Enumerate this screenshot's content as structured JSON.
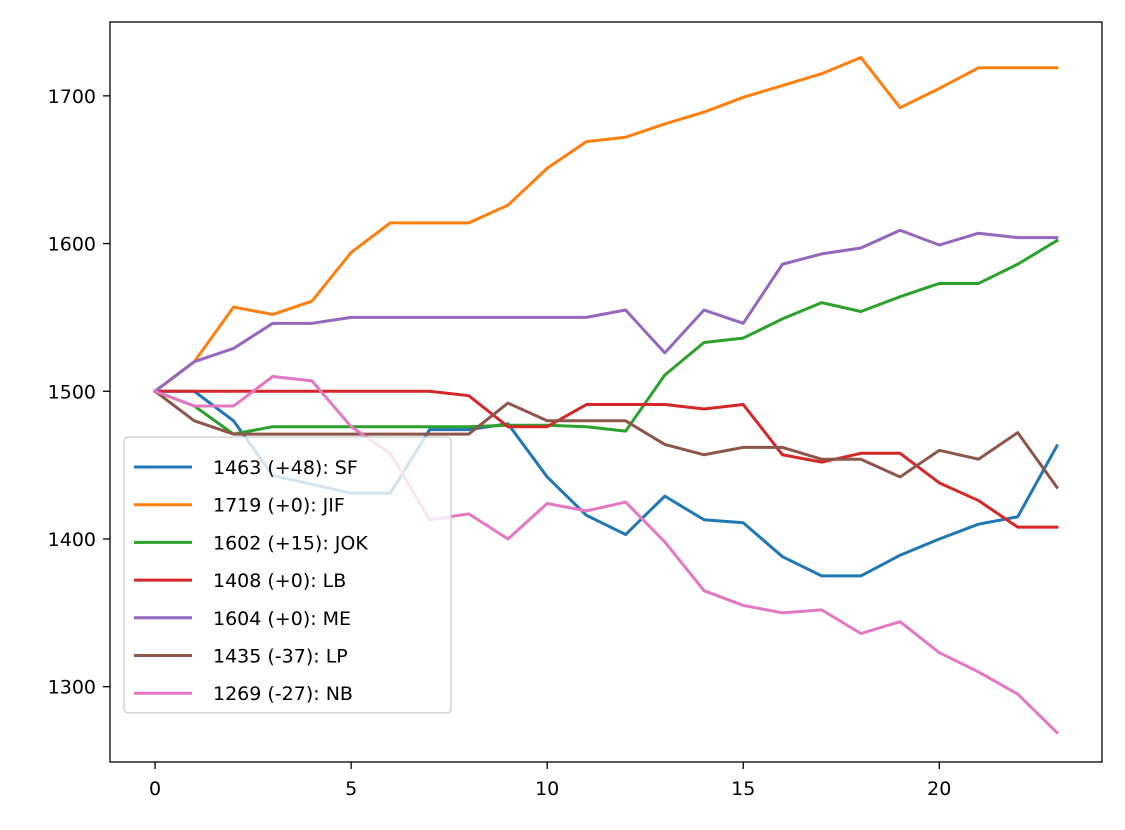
{
  "chart_data": {
    "type": "line",
    "title": "",
    "xlabel": "",
    "ylabel": "",
    "xlim": [
      -1.15,
      24.15
    ],
    "ylim": [
      1249,
      1750
    ],
    "xticks": [
      0,
      5,
      10,
      15,
      20
    ],
    "yticks": [
      1300,
      1400,
      1500,
      1600,
      1700
    ],
    "legend_position": "lower-left",
    "grid": false,
    "x": [
      0,
      1,
      2,
      3,
      4,
      5,
      6,
      7,
      8,
      9,
      10,
      11,
      12,
      13,
      14,
      15,
      16,
      17,
      18,
      19,
      20,
      21,
      22,
      23
    ],
    "series": [
      {
        "name": "1463 (+48): SF",
        "color": "#1f77b4",
        "values": [
          1500,
          1500,
          1480,
          1443,
          1437,
          1431,
          1431,
          1474,
          1474,
          1478,
          1442,
          1416,
          1403,
          1429,
          1413,
          1411,
          1388,
          1375,
          1375,
          1389,
          1400,
          1410,
          1415,
          1463
        ]
      },
      {
        "name": "1719 (+0): JIF",
        "color": "#ff7f0e",
        "values": [
          1500,
          1520,
          1557,
          1552,
          1561,
          1594,
          1614,
          1614,
          1614,
          1626,
          1651,
          1669,
          1672,
          1681,
          1689,
          1699,
          1707,
          1715,
          1726,
          1692,
          1705,
          1719,
          1719,
          1719
        ]
      },
      {
        "name": "1602 (+15): JOK",
        "color": "#2ca02c",
        "values": [
          1500,
          1490,
          1471,
          1476,
          1476,
          1476,
          1476,
          1476,
          1476,
          1477,
          1477,
          1476,
          1473,
          1511,
          1533,
          1536,
          1549,
          1560,
          1554,
          1564,
          1573,
          1573,
          1586,
          1602
        ]
      },
      {
        "name": "1408 (+0): LB",
        "color": "#d62728",
        "values": [
          1500,
          1500,
          1500,
          1500,
          1500,
          1500,
          1500,
          1500,
          1497,
          1476,
          1476,
          1491,
          1491,
          1491,
          1488,
          1491,
          1457,
          1452,
          1458,
          1458,
          1438,
          1426,
          1408,
          1408
        ]
      },
      {
        "name": "1604 (+0): ME",
        "color": "#9467bd",
        "values": [
          1500,
          1520,
          1529,
          1546,
          1546,
          1550,
          1550,
          1550,
          1550,
          1550,
          1550,
          1550,
          1555,
          1526,
          1555,
          1546,
          1586,
          1593,
          1597,
          1609,
          1599,
          1607,
          1604,
          1604
        ]
      },
      {
        "name": "1435 (-37): LP",
        "color": "#8c564b",
        "values": [
          1500,
          1480,
          1471,
          1471,
          1471,
          1471,
          1471,
          1471,
          1471,
          1492,
          1480,
          1480,
          1480,
          1464,
          1457,
          1462,
          1462,
          1454,
          1454,
          1442,
          1460,
          1454,
          1472,
          1435
        ]
      },
      {
        "name": "1269 (-27): NB",
        "color": "#e377c2",
        "values": [
          1500,
          1490,
          1490,
          1510,
          1507,
          1476,
          1458,
          1413,
          1417,
          1400,
          1424,
          1419,
          1425,
          1398,
          1365,
          1355,
          1350,
          1352,
          1336,
          1344,
          1323,
          1310,
          1295,
          1269
        ]
      }
    ]
  }
}
